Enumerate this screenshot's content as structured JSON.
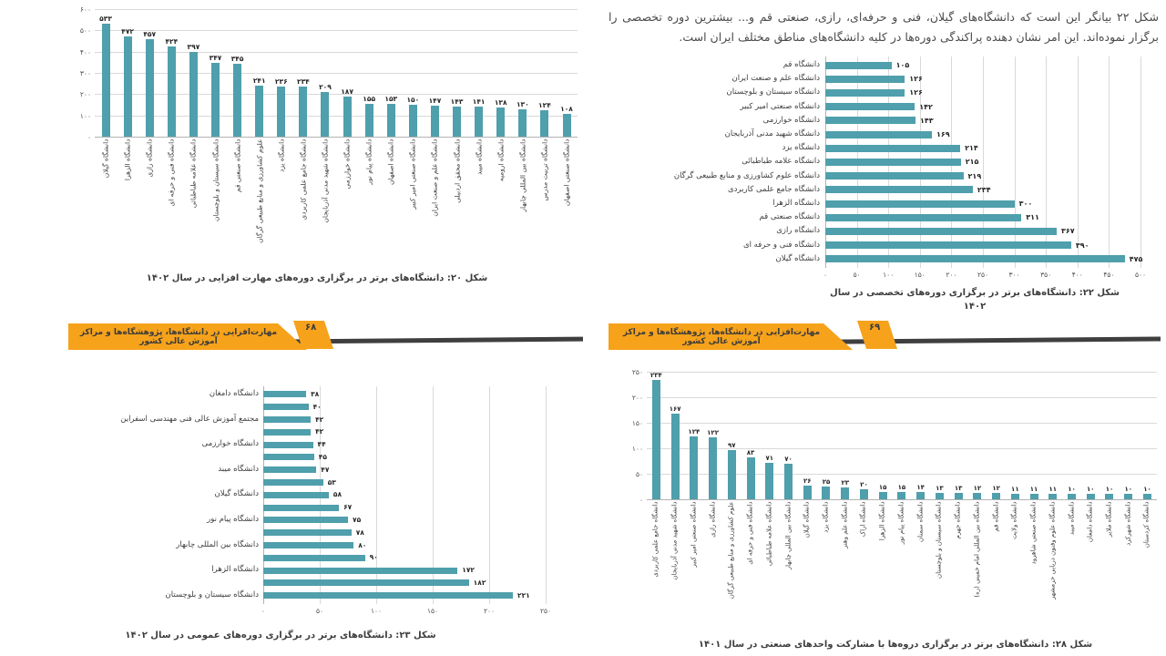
{
  "document": {
    "pages": [
      {
        "side": "left",
        "page_number": "۶۸",
        "banner_text": "مهارت‌افزایی در دانشگاه‌ها، پژوهشگاه‌ها و مراکز آموزش عالی کشور"
      },
      {
        "side": "right",
        "page_number": "۶۹",
        "banner_text": "مهارت‌افزایی در دانشگاه‌ها، پژوهشگاه‌ها و مراکز آموزش عالی کشور",
        "intro_paragraph": "شکل ۲۲ بیانگر این است که دانشگاه‌های گیلان، فنی و حرفه‌ای، رازی، صنعتی قم و... بیشترین دوره تخصصی را برگزار نموده‌اند. این امر نشان دهنده پراکندگی دوره‌ها در کلیه دانشگاه‌های مناطق مختلف ایران است."
      }
    ]
  },
  "colors": {
    "bar_teal": "#4f9fac",
    "banner_orange": "#f6a21b",
    "banner_shadow": "#3f3f3f",
    "gridline": "#d9d9d9",
    "axis_line": "#b3b3b3",
    "caption_text": "#3d3d3d"
  },
  "chart_data": [
    {
      "id": "fig20",
      "type": "bar",
      "orientation": "vertical",
      "title": "شکل ۲۰: دانشگاه‌های برتر در برگزاری دوره‌های مهارت افزایی در سال ۱۴۰۲",
      "categories": [
        "دانشگاه گیلان",
        "دانشگاه الزهرا",
        "دانشگاه رازی",
        "دانشگاه فنی و حرفه ای",
        "دانشگاه علامه طباطبائی",
        "دانشگاه سیستان و بلوچستان",
        "دانشگاه صنعتی قم",
        "علوم کشاورزی و منابع طبیعی گرگان",
        "دانشگاه یزد",
        "دانشگاه جامع علمی کاربردی",
        "دانشگاه شهید مدنی آذربایجان",
        "دانشگاه خوارزمی",
        "دانشگاه پیام نور",
        "دانشگاه اصفهان",
        "دانشگاه صنعتی امیر کبیر",
        "دانشگاه علم و صنعت ایران",
        "دانشگاه محقق اردبیلی",
        "دانشگاه میبد",
        "دانشگاه ارومیه",
        "دانشگاه بین المللی چابهار",
        "دانشگاه تربیت مدرس",
        "دانشگاه صنعتی اصفهان"
      ],
      "values": [
        533,
        472,
        457,
        424,
        397,
        347,
        345,
        241,
        236,
        234,
        209,
        187,
        155,
        153,
        150,
        147,
        143,
        141,
        138,
        130,
        124,
        108
      ],
      "ylim": [
        0,
        600
      ],
      "yticks": [
        0,
        100,
        200,
        300,
        400,
        500,
        600
      ],
      "grid": true,
      "digit_style": "persian"
    },
    {
      "id": "fig22",
      "type": "bar",
      "orientation": "horizontal",
      "title": "شکل ۲۲: دانشگاه‌های برتر در برگزاری دوره‌های تخصصی در سال ۱۴۰۲",
      "categories": [
        "دانشگاه قم",
        "دانشگاه علم و صنعت ایران",
        "دانشگاه سیستان و بلوچستان",
        "دانشگاه صنعتی امیر کبیر",
        "دانشگاه خوارزمی",
        "دانشگاه شهید مدنی آذربایجان",
        "دانشگاه یزد",
        "دانشگاه علامه طباطبائی",
        "دانشگاه علوم کشاورزی و منابع طبیعی گرگان",
        "دانشگاه جامع علمی کاربردی",
        "دانشگاه الزهرا",
        "دانشگاه صنعتی قم",
        "دانشگاه رازی",
        "دانشگاه فنی و حرفه ای",
        "دانشگاه گیلان"
      ],
      "values": [
        105,
        126,
        126,
        142,
        143,
        169,
        214,
        215,
        219,
        234,
        300,
        311,
        367,
        390,
        475
      ],
      "xlim": [
        0,
        500
      ],
      "xticks": [
        0,
        50,
        100,
        150,
        200,
        250,
        300,
        350,
        400,
        450,
        500
      ],
      "grid": true,
      "digit_style": "persian"
    },
    {
      "id": "fig23",
      "type": "bar",
      "orientation": "horizontal",
      "title": "شکل ۲۳: دانشگاه‌های برتر در برگزاری دوره‌های عمومی در سال ۱۴۰۲",
      "categories": [
        "دانشگاه دامغان",
        "",
        "مجتمع آموزش عالی فنی مهندسی اسفراین",
        "",
        "دانشگاه خوارزمی",
        "",
        "دانشگاه میبد",
        "",
        "دانشگاه گیلان",
        "",
        "دانشگاه پیام نور",
        "",
        "دانشگاه بین المللی چابهار",
        "",
        "دانشگاه الزهرا",
        "",
        "دانشگاه سیستان و بلوچستان"
      ],
      "values": [
        38,
        40,
        42,
        42,
        44,
        45,
        47,
        53,
        58,
        67,
        75,
        78,
        80,
        90,
        172,
        182,
        221
      ],
      "xlim": [
        0,
        250
      ],
      "xticks": [
        0,
        50,
        100,
        150,
        200,
        250
      ],
      "grid": true,
      "digit_style": "persian"
    },
    {
      "id": "fig28",
      "type": "bar",
      "orientation": "vertical",
      "title": "شکل ۲۸: دانشگاه‌های برتر در برگزاری دروه‌ها با مشارکت واحدهای صنعتی در سال ۱۴۰۱",
      "categories": [
        "دانشگاه جامع علمی کاربردی",
        "دانشگاه شهید مدنی آذربایجان",
        "دانشگاه صنعتی امیر کبیر",
        "دانشگاه رازی",
        "علوم کشاورزی و منابع طبیعی گرگان",
        "دانشگاه فنی و حرفه ای",
        "دانشگاه علامه طباطبائی",
        "دانشگاه بین المللی چابهار",
        "دانشگاه گیلان",
        "دانشگاه یزد",
        "دانشگاه علم وهنر",
        "دانشگاه اراک",
        "دانشگاه الزهرا",
        "دانشگاه پیام نور",
        "دانشگاه سمنان",
        "دانشگاه سیستان و بلوچستان",
        "دانشگاه جهرم",
        "دانشگاه بین المللی امام خمینی (ره)",
        "دانشگاه قم",
        "دانشگاه ولایت",
        "دانشگاه صنعتی شاهرود",
        "دانشگاه علوم وفنون دریایی خرمشهر",
        "دانشگاه میبد",
        "دانشگاه دامغان",
        "دانشگاه ملایر",
        "دانشگاه شهرکرد",
        "دانشگاه کردستان"
      ],
      "values": [
        234,
        167,
        124,
        122,
        97,
        83,
        71,
        70,
        26,
        25,
        23,
        20,
        15,
        15,
        14,
        13,
        13,
        12,
        12,
        11,
        11,
        11,
        10,
        10,
        10,
        10,
        10
      ],
      "ylim": [
        0,
        250
      ],
      "yticks": [
        0,
        50,
        100,
        150,
        200,
        250
      ],
      "grid": true,
      "digit_style": "persian"
    }
  ]
}
